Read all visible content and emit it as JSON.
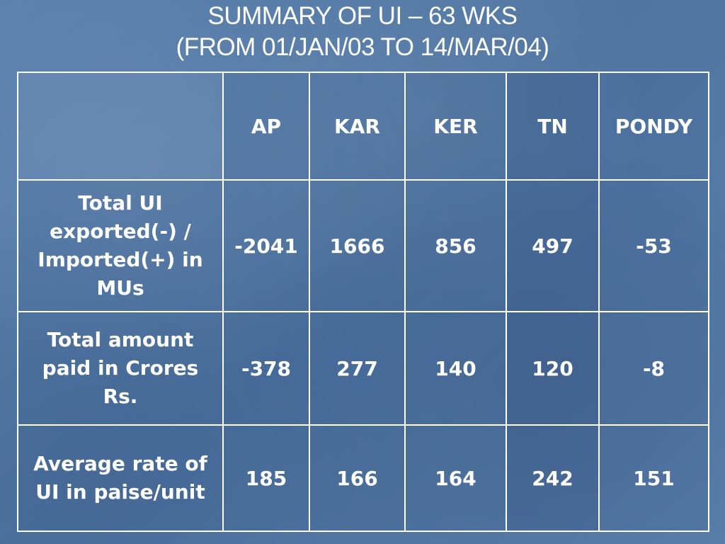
{
  "slide": {
    "title_line1": "SUMMARY OF UI – 63 WKS",
    "title_line2": "(FROM 01/JAN/03 TO 14/MAR/04)"
  },
  "table": {
    "columns": [
      "AP",
      "KAR",
      "KER",
      "TN",
      "PONDY"
    ],
    "rows": [
      {
        "label": "Total UI exported(-) / Imported(+) in MUs",
        "values": [
          "-2041",
          "1666",
          "856",
          "497",
          "-53"
        ]
      },
      {
        "label": "Total amount paid in Crores Rs.",
        "values": [
          "-378",
          "277",
          "140",
          "120",
          "-8"
        ]
      },
      {
        "label": "Average rate of UI in paise/unit",
        "values": [
          "185",
          "166",
          "164",
          "242",
          "151"
        ]
      }
    ]
  },
  "colors": {
    "background": "#5479a6",
    "text": "#ffffff",
    "grid": "#ffffff"
  }
}
